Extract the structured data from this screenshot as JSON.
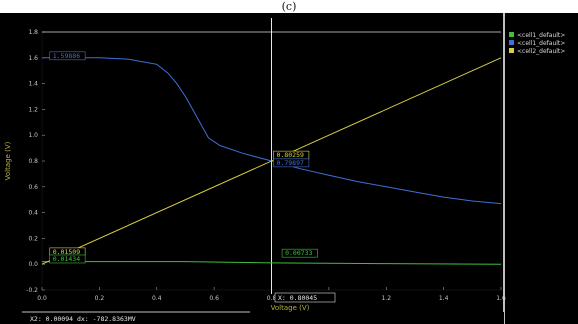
{
  "page_caption": "(c)",
  "chart_data": {
    "type": "line",
    "title": "",
    "xlabel": "Voltage (V)",
    "ylabel": "Voltage (V)",
    "xlim": [
      0,
      1.6
    ],
    "ylim": [
      -0.2,
      1.8
    ],
    "x_ticks": [
      "0.0",
      "0.2",
      "0.4",
      "0.6",
      "0.8",
      "1.0",
      "1.2",
      "1.4",
      "1.6"
    ],
    "y_ticks": [
      "-0.2",
      "0.0",
      "0.2",
      "0.4",
      "0.6",
      "0.8",
      "1.0",
      "1.2",
      "1.4",
      "1.6",
      "1.8"
    ],
    "grid": false,
    "legend_position": "right",
    "series": [
      {
        "name": "<cell1_default>",
        "color": "#3fbf3f",
        "points": [
          [
            0,
            0.02
          ],
          [
            0.5,
            0.02
          ],
          [
            0.8,
            0.01
          ],
          [
            1.2,
            0.005
          ],
          [
            1.6,
            0.0
          ]
        ]
      },
      {
        "name": "<cell1_default>",
        "color": "#3f6fd8",
        "points": [
          [
            0,
            1.6
          ],
          [
            0.2,
            1.6
          ],
          [
            0.3,
            1.59
          ],
          [
            0.35,
            1.57
          ],
          [
            0.4,
            1.55
          ],
          [
            0.44,
            1.48
          ],
          [
            0.47,
            1.4
          ],
          [
            0.5,
            1.3
          ],
          [
            0.52,
            1.22
          ],
          [
            0.55,
            1.1
          ],
          [
            0.58,
            0.98
          ],
          [
            0.62,
            0.92
          ],
          [
            0.7,
            0.86
          ],
          [
            0.8,
            0.8
          ],
          [
            0.9,
            0.74
          ],
          [
            1.0,
            0.69
          ],
          [
            1.1,
            0.64
          ],
          [
            1.2,
            0.6
          ],
          [
            1.3,
            0.56
          ],
          [
            1.4,
            0.52
          ],
          [
            1.5,
            0.49
          ],
          [
            1.6,
            0.47
          ]
        ]
      },
      {
        "name": "<cell2_default>",
        "color": "#d8d040",
        "points": [
          [
            0,
            0.0
          ],
          [
            1.6,
            1.6
          ]
        ]
      }
    ],
    "cursors": [
      {
        "axis": "y",
        "value": 1.8
      },
      {
        "axis": "x",
        "value": 0.8
      }
    ],
    "annotations": [
      {
        "text": "1.59886",
        "x": 0.02,
        "y": 1.6,
        "color": "#3f6fd8"
      },
      {
        "text": "0.80259",
        "x": 0.8,
        "y": 0.83,
        "color": "#d8d040"
      },
      {
        "text": "0.79897",
        "x": 0.8,
        "y": 0.77,
        "color": "#3f6fd8"
      },
      {
        "text": "0.01509",
        "x": 0.02,
        "y": 0.08,
        "color": "#d8d040"
      },
      {
        "text": "0.01434",
        "x": 0.02,
        "y": 0.025,
        "color": "#3fbf3f"
      },
      {
        "text": "0.00733",
        "x": 0.83,
        "y": 0.07,
        "color": "#3fbf3f"
      }
    ],
    "cursor_x_readout": "X: 0.80045",
    "cursor_status": "X2: 0.00094  dx: -782.8363MV"
  }
}
